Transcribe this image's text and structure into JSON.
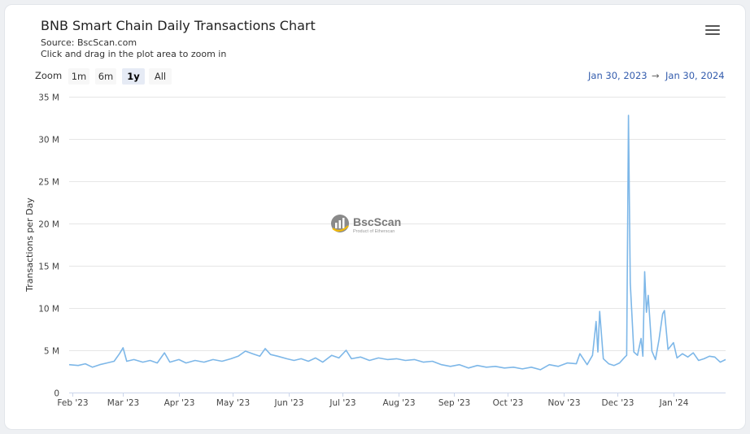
{
  "header": {
    "title": "BNB Smart Chain Daily Transactions Chart",
    "source": "Source: BscScan.com",
    "hint": "Click and drag in the plot area to zoom in"
  },
  "menu_icon": "hamburger-menu-icon",
  "zoom": {
    "label": "Zoom",
    "options": [
      "1m",
      "6m",
      "1y",
      "All"
    ],
    "selected": "1y"
  },
  "range": {
    "from": "Jan 30, 2023",
    "arrow": "→",
    "to": "Jan 30, 2024"
  },
  "watermark": {
    "name": "BscScan",
    "tagline": "Product of Etherscan",
    "logo_icon": "bscscan-logo-icon"
  },
  "colors": {
    "line": "#7db7e8",
    "grid": "#e6e6e6",
    "range_text": "#335cad"
  },
  "chart_data": {
    "type": "line",
    "title": "BNB Smart Chain Daily Transactions Chart",
    "ylabel": "Transactions per Day",
    "xlabel": "",
    "ylim": [
      0,
      35000000
    ],
    "yticks": [
      0,
      5000000,
      10000000,
      15000000,
      20000000,
      25000000,
      30000000,
      35000000
    ],
    "ytick_labels": [
      "0",
      "5 M",
      "10 M",
      "15 M",
      "20 M",
      "25 M",
      "30 M",
      "35 M"
    ],
    "xlim": [
      "2023-01-30",
      "2024-01-30"
    ],
    "xticks": [
      "2023-02-01",
      "2023-03-01",
      "2023-04-01",
      "2023-05-01",
      "2023-06-01",
      "2023-07-01",
      "2023-08-01",
      "2023-09-01",
      "2023-10-01",
      "2023-11-01",
      "2023-12-01",
      "2024-01-01"
    ],
    "xtick_labels": [
      "Feb '23",
      "Mar '23",
      "Apr '23",
      "May '23",
      "Jun '23",
      "Jul '23",
      "Aug '23",
      "Sep '23",
      "Oct '23",
      "Nov '23",
      "Dec '23",
      "Jan '24"
    ],
    "grid": true,
    "legend": "none",
    "series": [
      {
        "points": [
          [
            "2023-01-30",
            3300000
          ],
          [
            "2023-02-04",
            3200000
          ],
          [
            "2023-02-08",
            3400000
          ],
          [
            "2023-02-12",
            3000000
          ],
          [
            "2023-02-16",
            3300000
          ],
          [
            "2023-02-20",
            3500000
          ],
          [
            "2023-02-24",
            3700000
          ],
          [
            "2023-02-27",
            4600000
          ],
          [
            "2023-03-01",
            5300000
          ],
          [
            "2023-03-03",
            3700000
          ],
          [
            "2023-03-07",
            3900000
          ],
          [
            "2023-03-12",
            3600000
          ],
          [
            "2023-03-16",
            3800000
          ],
          [
            "2023-03-20",
            3500000
          ],
          [
            "2023-03-24",
            4700000
          ],
          [
            "2023-03-27",
            3600000
          ],
          [
            "2023-04-01",
            3900000
          ],
          [
            "2023-04-05",
            3500000
          ],
          [
            "2023-04-10",
            3800000
          ],
          [
            "2023-04-15",
            3600000
          ],
          [
            "2023-04-20",
            3900000
          ],
          [
            "2023-04-25",
            3700000
          ],
          [
            "2023-04-30",
            4000000
          ],
          [
            "2023-05-04",
            4300000
          ],
          [
            "2023-05-08",
            4900000
          ],
          [
            "2023-05-12",
            4600000
          ],
          [
            "2023-05-16",
            4300000
          ],
          [
            "2023-05-19",
            5200000
          ],
          [
            "2023-05-22",
            4500000
          ],
          [
            "2023-05-26",
            4300000
          ],
          [
            "2023-05-31",
            4000000
          ],
          [
            "2023-06-04",
            3800000
          ],
          [
            "2023-06-08",
            4000000
          ],
          [
            "2023-06-12",
            3700000
          ],
          [
            "2023-06-16",
            4100000
          ],
          [
            "2023-06-20",
            3600000
          ],
          [
            "2023-06-25",
            4400000
          ],
          [
            "2023-06-29",
            4100000
          ],
          [
            "2023-07-03",
            5000000
          ],
          [
            "2023-07-06",
            4000000
          ],
          [
            "2023-07-11",
            4200000
          ],
          [
            "2023-07-16",
            3800000
          ],
          [
            "2023-07-21",
            4100000
          ],
          [
            "2023-07-26",
            3900000
          ],
          [
            "2023-07-31",
            4000000
          ],
          [
            "2023-08-05",
            3800000
          ],
          [
            "2023-08-10",
            3900000
          ],
          [
            "2023-08-15",
            3600000
          ],
          [
            "2023-08-20",
            3700000
          ],
          [
            "2023-08-25",
            3300000
          ],
          [
            "2023-08-30",
            3100000
          ],
          [
            "2023-09-04",
            3300000
          ],
          [
            "2023-09-09",
            2900000
          ],
          [
            "2023-09-14",
            3200000
          ],
          [
            "2023-09-19",
            3000000
          ],
          [
            "2023-09-24",
            3100000
          ],
          [
            "2023-09-29",
            2900000
          ],
          [
            "2023-10-04",
            3000000
          ],
          [
            "2023-10-09",
            2800000
          ],
          [
            "2023-10-14",
            3000000
          ],
          [
            "2023-10-19",
            2700000
          ],
          [
            "2023-10-24",
            3300000
          ],
          [
            "2023-10-29",
            3100000
          ],
          [
            "2023-11-03",
            3500000
          ],
          [
            "2023-11-08",
            3400000
          ],
          [
            "2023-11-10",
            4600000
          ],
          [
            "2023-11-14",
            3300000
          ],
          [
            "2023-11-17",
            4400000
          ],
          [
            "2023-11-19",
            8400000
          ],
          [
            "2023-11-20",
            4800000
          ],
          [
            "2023-11-21",
            9600000
          ],
          [
            "2023-11-23",
            4000000
          ],
          [
            "2023-11-26",
            3400000
          ],
          [
            "2023-11-29",
            3200000
          ],
          [
            "2023-12-02",
            3500000
          ],
          [
            "2023-12-05",
            4200000
          ],
          [
            "2023-12-06",
            4400000
          ],
          [
            "2023-12-07",
            32800000
          ],
          [
            "2023-12-08",
            13000000
          ],
          [
            "2023-12-10",
            4800000
          ],
          [
            "2023-12-12",
            4400000
          ],
          [
            "2023-12-14",
            6400000
          ],
          [
            "2023-12-15",
            4300000
          ],
          [
            "2023-12-16",
            14300000
          ],
          [
            "2023-12-17",
            9500000
          ],
          [
            "2023-12-18",
            11500000
          ],
          [
            "2023-12-20",
            4900000
          ],
          [
            "2023-12-22",
            3900000
          ],
          [
            "2023-12-24",
            6300000
          ],
          [
            "2023-12-26",
            9300000
          ],
          [
            "2023-12-27",
            9700000
          ],
          [
            "2023-12-29",
            5100000
          ],
          [
            "2024-01-01",
            5900000
          ],
          [
            "2024-01-03",
            4100000
          ],
          [
            "2024-01-06",
            4600000
          ],
          [
            "2024-01-09",
            4200000
          ],
          [
            "2024-01-12",
            4700000
          ],
          [
            "2024-01-15",
            3800000
          ],
          [
            "2024-01-18",
            4000000
          ],
          [
            "2024-01-21",
            4300000
          ],
          [
            "2024-01-24",
            4200000
          ],
          [
            "2024-01-27",
            3600000
          ],
          [
            "2024-01-30",
            3900000
          ]
        ]
      }
    ]
  }
}
